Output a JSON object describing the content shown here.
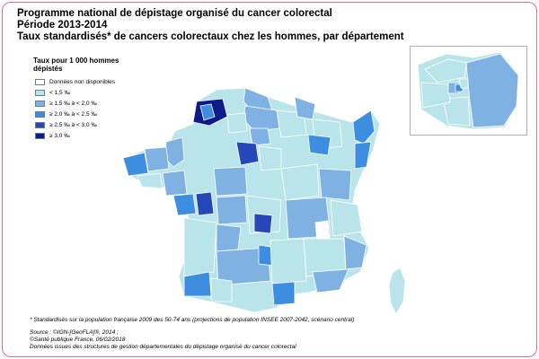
{
  "title": {
    "line1": "Programme national de dépistage organisé du cancer colorectal",
    "line2": "Période 2013-2014",
    "line3": "Taux standardisés* de cancers colorectaux chez les hommes, par département"
  },
  "legend": {
    "title": "Taux pour 1 000 hommes dépistés",
    "items": [
      {
        "label": "Données non disponibles",
        "color": "#ffffff"
      },
      {
        "label": "< 1,5 ‰",
        "color": "#b8e4ea"
      },
      {
        "label": "≥ 1,5 ‰ à < 2,0 ‰",
        "color": "#7fb2e3"
      },
      {
        "label": "≥ 2,0 ‰ à < 2,5 ‰",
        "color": "#3d8ee0"
      },
      {
        "label": "≥ 2,5 ‰ à < 3,0 ‰",
        "color": "#2547b8"
      },
      {
        "label": "≥ 3,0 ‰",
        "color": "#0d1a8a"
      }
    ]
  },
  "footnotes": {
    "standardisation": "* Standardisés sur la population française 2009 des 50-74 ans (projections de population INSEE 2007-2042, scénario central)",
    "source_line1": "Source : ©IGN-[GeoFLA]®, 2014 ;",
    "source_line2": "©Santé publique France, 06/02/2018",
    "source_line3": "Données issues des structures de gestion départementales du dépistage organisé du cancer colorectal"
  },
  "colors": {
    "border_accent": "#d66fae",
    "region_outline": "#ffffff"
  }
}
